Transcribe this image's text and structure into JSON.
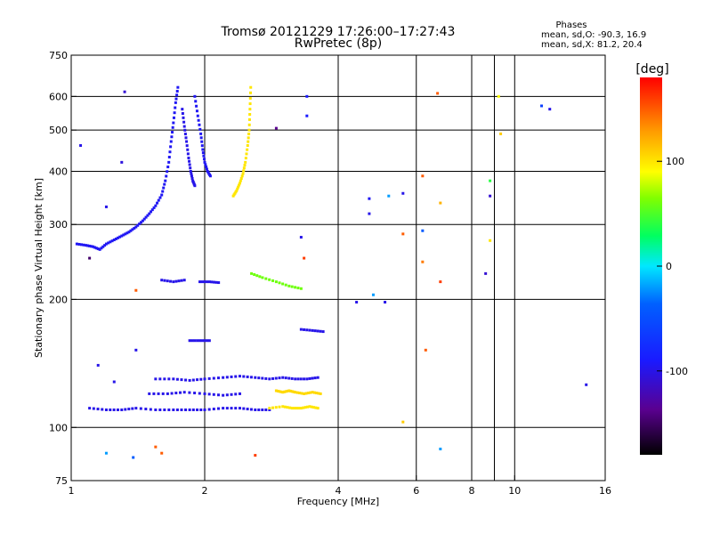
{
  "chart_data": {
    "type": "scatter",
    "title": "Tromsø 20121229 17:26:00–17:27:43",
    "subtitle": "RwPretec (8p)",
    "xlabel": "Frequency [MHz]",
    "ylabel": "Stationary phase Virtual Height [km]",
    "x_scale": "log",
    "y_scale": "log",
    "xlim": [
      1,
      16
    ],
    "ylim": [
      75,
      750
    ],
    "x_ticks": [
      1,
      2,
      4,
      6,
      8,
      10,
      16
    ],
    "x_ticks_minor_lines": [
      1,
      2,
      4,
      6,
      8,
      9,
      10
    ],
    "y_ticks": [
      75,
      100,
      200,
      300,
      400,
      500,
      600,
      750
    ],
    "y_tick_labels": [
      "75",
      "100",
      "200",
      "300",
      "400",
      "500",
      "600",
      "750"
    ],
    "grid": true,
    "stats": {
      "heading": "Phases",
      "line1": "mean, sd,O: -90.3, 16.9",
      "line2": "mean, sd,X:  81.2, 20.4"
    },
    "colorbar": {
      "label": "[deg]",
      "range": [
        -180,
        180
      ],
      "ticks": [
        100,
        0,
        -100
      ],
      "tick_labels": [
        "100",
        "0",
        "-100"
      ]
    },
    "traces": [
      {
        "name": "",
        "phase": -95,
        "points": [
          [
            1.03,
            270
          ],
          [
            1.08,
            268
          ],
          [
            1.12,
            266
          ],
          [
            1.16,
            262
          ],
          [
            1.2,
            270
          ],
          [
            1.25,
            276
          ],
          [
            1.3,
            282
          ],
          [
            1.35,
            288
          ],
          [
            1.4,
            296
          ],
          [
            1.45,
            306
          ],
          [
            1.5,
            318
          ],
          [
            1.55,
            332
          ],
          [
            1.6,
            352
          ],
          [
            1.63,
            380
          ],
          [
            1.66,
            420
          ],
          [
            1.68,
            470
          ],
          [
            1.7,
            520
          ],
          [
            1.72,
            580
          ],
          [
            1.74,
            630
          ]
        ]
      },
      {
        "name": "",
        "phase": -100,
        "points": [
          [
            1.78,
            560
          ],
          [
            1.8,
            510
          ],
          [
            1.82,
            470
          ],
          [
            1.84,
            430
          ],
          [
            1.86,
            400
          ],
          [
            1.88,
            380
          ],
          [
            1.9,
            370
          ]
        ]
      },
      {
        "name": "",
        "phase": -95,
        "points": [
          [
            1.9,
            600
          ],
          [
            1.93,
            540
          ],
          [
            1.96,
            490
          ],
          [
            1.98,
            450
          ],
          [
            2.0,
            420
          ],
          [
            2.03,
            400
          ],
          [
            2.06,
            390
          ]
        ]
      },
      {
        "name": "",
        "phase": 100,
        "points": [
          [
            2.32,
            350
          ],
          [
            2.36,
            360
          ],
          [
            2.4,
            375
          ],
          [
            2.44,
            395
          ],
          [
            2.47,
            420
          ],
          [
            2.5,
            460
          ],
          [
            2.52,
            500
          ],
          [
            2.53,
            560
          ],
          [
            2.54,
            630
          ]
        ]
      },
      {
        "name": "",
        "phase": -100,
        "points": [
          [
            1.6,
            222
          ],
          [
            1.7,
            220
          ],
          [
            1.8,
            222
          ]
        ]
      },
      {
        "name": "",
        "phase": -100,
        "points": [
          [
            1.95,
            220
          ],
          [
            2.05,
            220
          ],
          [
            2.15,
            219
          ]
        ]
      },
      {
        "name": "",
        "phase": 60,
        "points": [
          [
            2.55,
            230
          ],
          [
            2.7,
            225
          ],
          [
            2.9,
            220
          ],
          [
            3.1,
            215
          ],
          [
            3.3,
            212
          ]
        ]
      },
      {
        "name": "",
        "phase": -100,
        "points": [
          [
            1.85,
            160
          ],
          [
            1.95,
            160
          ],
          [
            2.05,
            160
          ]
        ]
      },
      {
        "name": "",
        "phase": -100,
        "points": [
          [
            3.3,
            170
          ],
          [
            3.5,
            169
          ],
          [
            3.7,
            168
          ]
        ]
      },
      {
        "name": "",
        "phase": -100,
        "points": [
          [
            1.55,
            130
          ],
          [
            1.7,
            130
          ],
          [
            1.85,
            129
          ],
          [
            2.0,
            130
          ],
          [
            2.2,
            131
          ],
          [
            2.4,
            132
          ],
          [
            2.6,
            131
          ],
          [
            2.8,
            130
          ],
          [
            3.0,
            131
          ],
          [
            3.2,
            130
          ],
          [
            3.4,
            130
          ],
          [
            3.6,
            131
          ]
        ]
      },
      {
        "name": "",
        "phase": -100,
        "points": [
          [
            1.5,
            120
          ],
          [
            1.65,
            120
          ],
          [
            1.8,
            121
          ],
          [
            2.0,
            120
          ],
          [
            2.2,
            119
          ],
          [
            2.4,
            120
          ]
        ]
      },
      {
        "name": "",
        "phase": 105,
        "points": [
          [
            2.9,
            122
          ],
          [
            3.0,
            121
          ],
          [
            3.1,
            122
          ],
          [
            3.2,
            121
          ],
          [
            3.35,
            120
          ],
          [
            3.5,
            121
          ],
          [
            3.65,
            120
          ]
        ]
      },
      {
        "name": "",
        "phase": -100,
        "points": [
          [
            1.1,
            111
          ],
          [
            1.2,
            110
          ],
          [
            1.3,
            110
          ],
          [
            1.4,
            111
          ],
          [
            1.55,
            110
          ],
          [
            1.7,
            110
          ],
          [
            1.85,
            110
          ],
          [
            2.0,
            110
          ],
          [
            2.2,
            111
          ],
          [
            2.4,
            111
          ],
          [
            2.6,
            110
          ],
          [
            2.8,
            110
          ]
        ]
      },
      {
        "name": "",
        "phase": 100,
        "points": [
          [
            2.8,
            111
          ],
          [
            3.0,
            112
          ],
          [
            3.15,
            111
          ],
          [
            3.3,
            111
          ],
          [
            3.45,
            112
          ],
          [
            3.6,
            111
          ]
        ]
      }
    ],
    "points": [
      {
        "x": 1.32,
        "y": 615,
        "phase": -110
      },
      {
        "x": 1.05,
        "y": 460,
        "phase": -100
      },
      {
        "x": 1.3,
        "y": 420,
        "phase": -105
      },
      {
        "x": 1.2,
        "y": 330,
        "phase": -100
      },
      {
        "x": 1.1,
        "y": 250,
        "phase": -150
      },
      {
        "x": 1.4,
        "y": 210,
        "phase": 150
      },
      {
        "x": 2.9,
        "y": 505,
        "phase": -140
      },
      {
        "x": 3.4,
        "y": 600,
        "phase": -90
      },
      {
        "x": 3.4,
        "y": 540,
        "phase": -90
      },
      {
        "x": 3.3,
        "y": 280,
        "phase": -100
      },
      {
        "x": 3.35,
        "y": 250,
        "phase": 160
      },
      {
        "x": 4.4,
        "y": 197,
        "phase": -100
      },
      {
        "x": 4.7,
        "y": 345,
        "phase": -95
      },
      {
        "x": 4.7,
        "y": 318,
        "phase": -100
      },
      {
        "x": 5.2,
        "y": 350,
        "phase": -20
      },
      {
        "x": 5.6,
        "y": 355,
        "phase": -100
      },
      {
        "x": 5.6,
        "y": 285,
        "phase": 150
      },
      {
        "x": 4.8,
        "y": 205,
        "phase": -20
      },
      {
        "x": 5.1,
        "y": 197,
        "phase": -100
      },
      {
        "x": 6.2,
        "y": 290,
        "phase": -40
      },
      {
        "x": 6.2,
        "y": 390,
        "phase": 150
      },
      {
        "x": 6.7,
        "y": 610,
        "phase": 150
      },
      {
        "x": 6.8,
        "y": 337,
        "phase": 120
      },
      {
        "x": 6.8,
        "y": 220,
        "phase": 160
      },
      {
        "x": 6.2,
        "y": 245,
        "phase": 140
      },
      {
        "x": 6.3,
        "y": 152,
        "phase": 150
      },
      {
        "x": 5.6,
        "y": 103,
        "phase": 110
      },
      {
        "x": 8.8,
        "y": 380,
        "phase": 40
      },
      {
        "x": 8.8,
        "y": 350,
        "phase": -110
      },
      {
        "x": 8.6,
        "y": 230,
        "phase": -110
      },
      {
        "x": 8.8,
        "y": 275,
        "phase": 100
      },
      {
        "x": 9.2,
        "y": 600,
        "phase": 90
      },
      {
        "x": 9.3,
        "y": 490,
        "phase": 110
      },
      {
        "x": 11.5,
        "y": 570,
        "phase": -60
      },
      {
        "x": 12,
        "y": 560,
        "phase": -100
      },
      {
        "x": 14.5,
        "y": 126,
        "phase": -100
      },
      {
        "x": 1.2,
        "y": 87,
        "phase": -20
      },
      {
        "x": 1.38,
        "y": 85,
        "phase": -40
      },
      {
        "x": 1.55,
        "y": 90,
        "phase": 150
      },
      {
        "x": 1.6,
        "y": 87,
        "phase": 150
      },
      {
        "x": 2.6,
        "y": 86,
        "phase": 160
      },
      {
        "x": 6.8,
        "y": 89,
        "phase": -20
      },
      {
        "x": 1.4,
        "y": 152,
        "phase": -100
      },
      {
        "x": 1.25,
        "y": 128,
        "phase": -100
      },
      {
        "x": 1.15,
        "y": 140,
        "phase": -100
      }
    ]
  }
}
